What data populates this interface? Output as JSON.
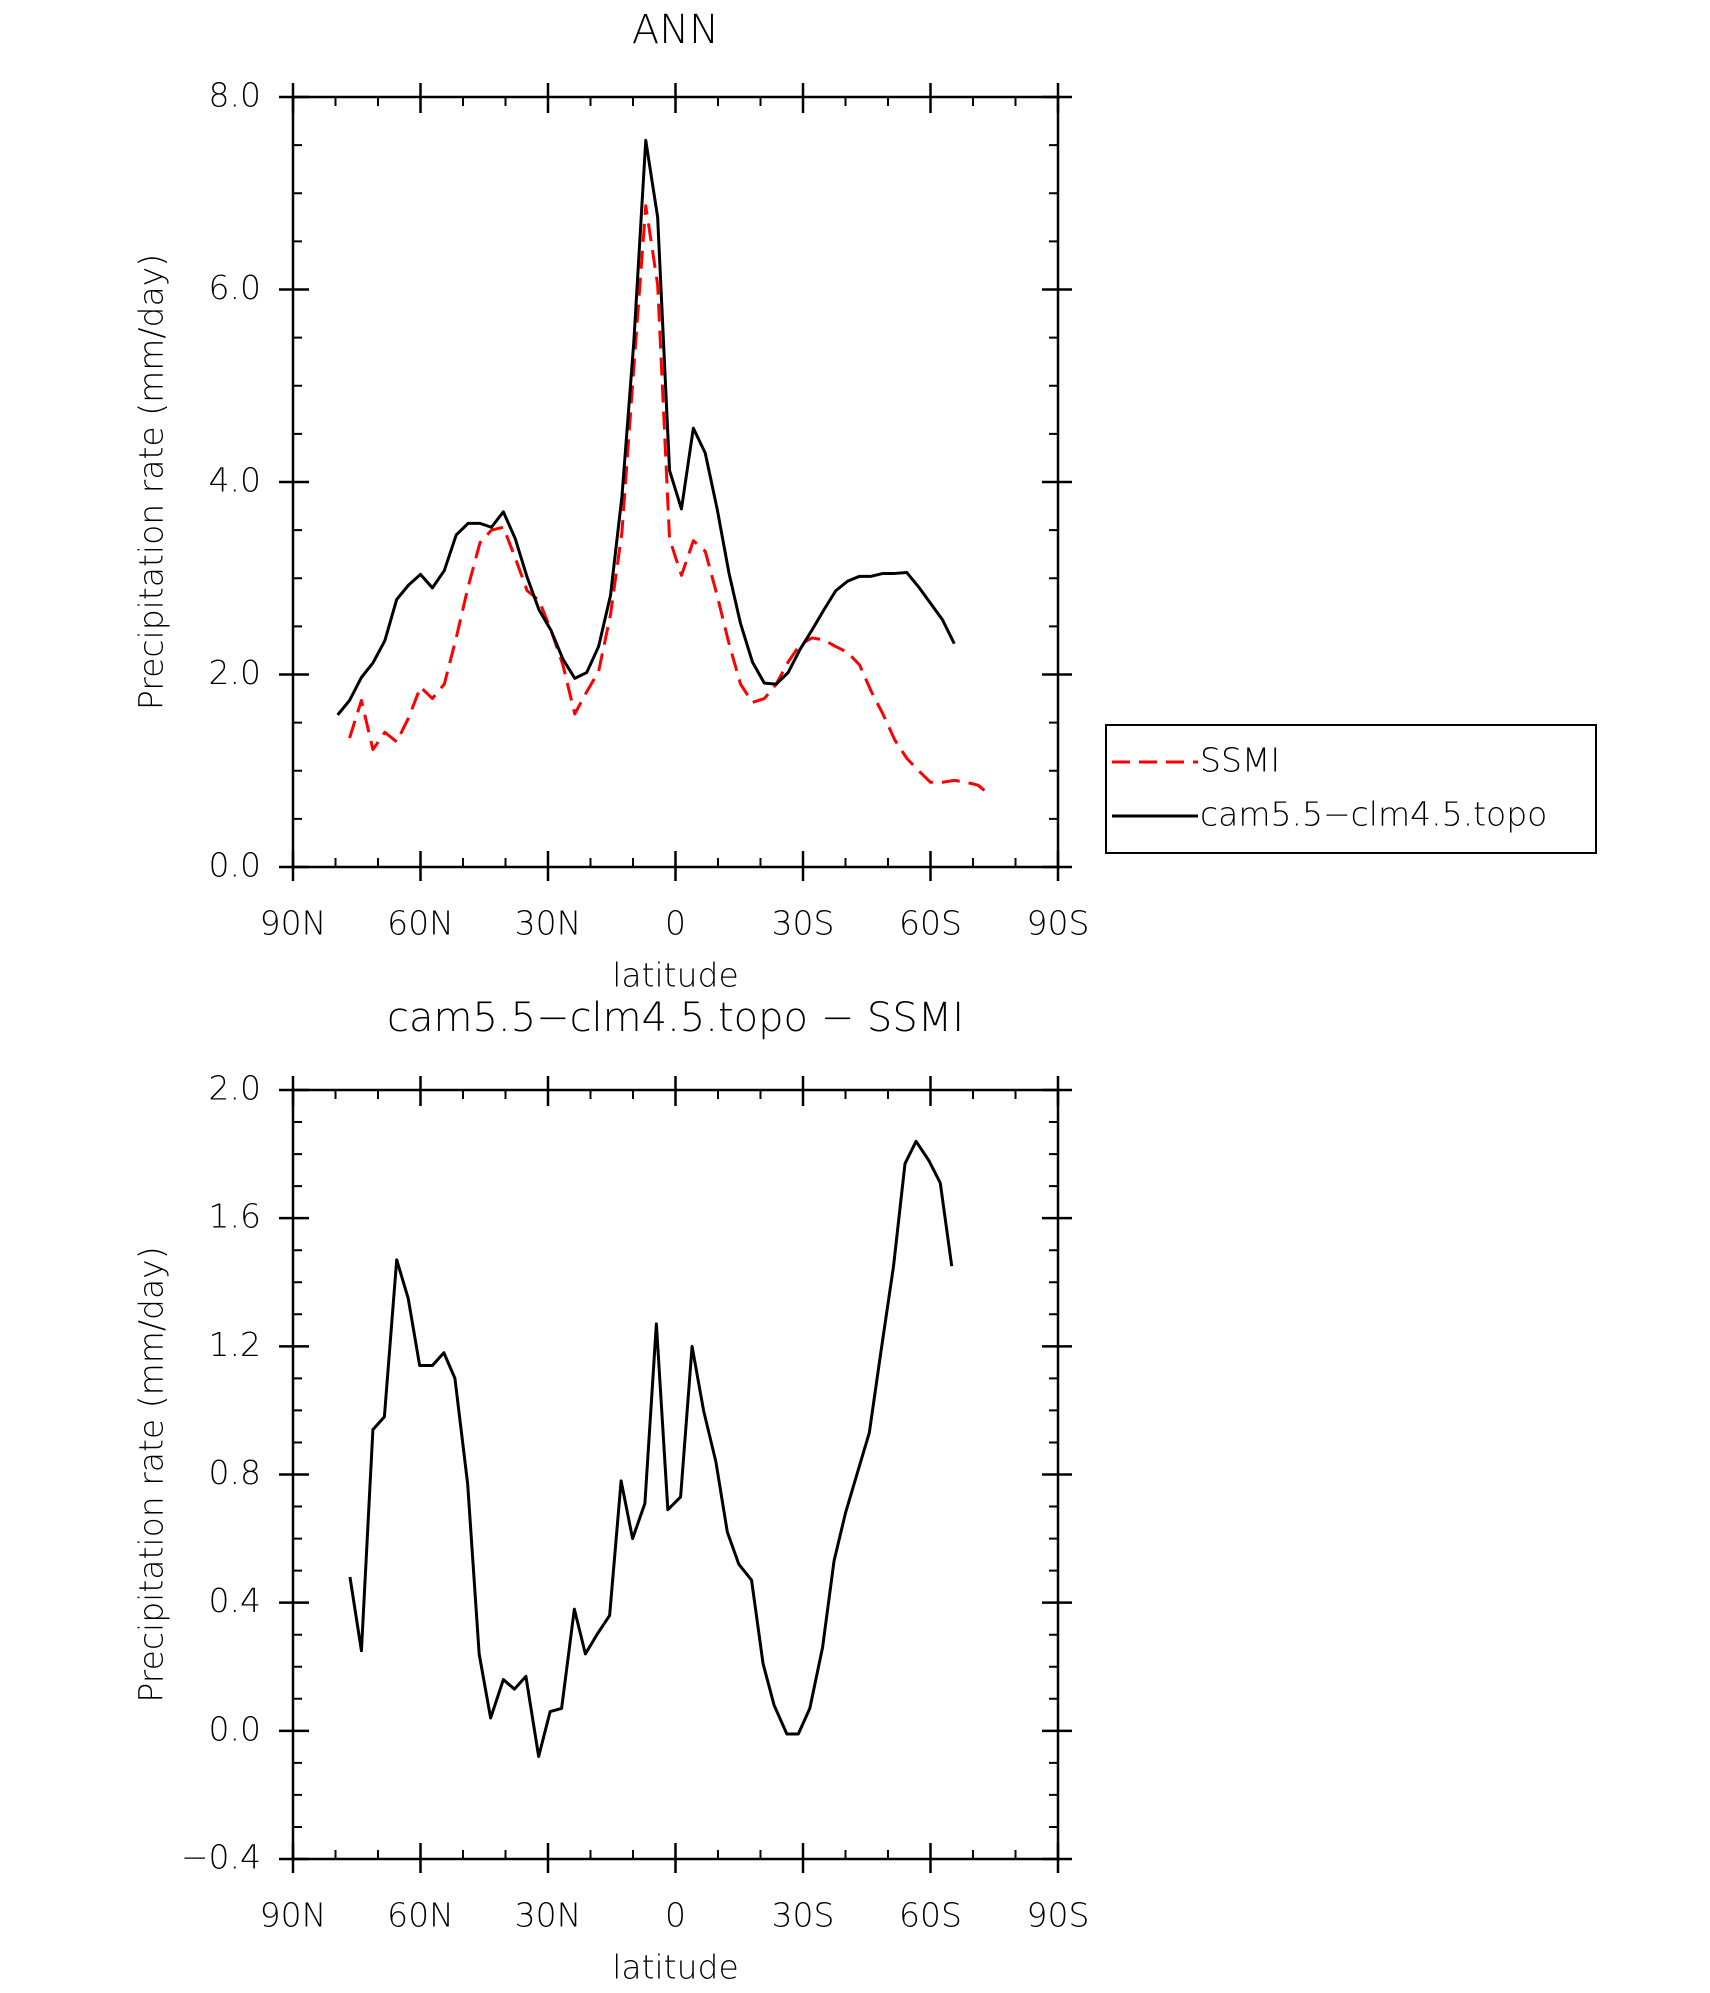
{
  "chart_data": [
    {
      "type": "line",
      "title": "ANN",
      "x_label": "latitude",
      "y_label": "Precipitation rate (mm/day)",
      "x": [
        79.5,
        76.7,
        73.9,
        71.2,
        68.4,
        65.6,
        62.8,
        60.0,
        57.2,
        54.4,
        51.6,
        48.8,
        46.0,
        43.3,
        40.5,
        37.7,
        34.9,
        32.1,
        29.3,
        26.5,
        23.7,
        20.9,
        18.1,
        15.3,
        12.6,
        9.8,
        7.0,
        4.2,
        1.4,
        -1.4,
        -4.2,
        -7.0,
        -9.8,
        -12.6,
        -15.3,
        -18.1,
        -20.9,
        -23.7,
        -26.5,
        -29.3,
        -32.1,
        -34.9,
        -37.7,
        -40.5,
        -43.3,
        -46.0,
        -48.8,
        -51.6,
        -54.4,
        -57.2,
        -60.0,
        -62.8,
        -65.6,
        -68.4,
        -71.2,
        -73.9
      ],
      "series": [
        {
          "name": "SSMI",
          "color": "#ff0000",
          "line_style": "dashed",
          "values": [
            null,
            1.34,
            1.73,
            1.22,
            1.4,
            1.3,
            1.55,
            1.87,
            1.75,
            1.9,
            2.38,
            2.91,
            3.37,
            3.5,
            3.53,
            3.21,
            2.87,
            2.77,
            2.46,
            2.1,
            1.59,
            1.82,
            2.03,
            2.62,
            3.48,
            5.19,
            6.87,
            6.05,
            3.41,
            3.03,
            3.39,
            3.28,
            2.82,
            2.32,
            1.9,
            1.71,
            1.75,
            1.9,
            2.13,
            2.31,
            2.38,
            2.36,
            2.29,
            2.23,
            2.1,
            1.83,
            1.59,
            1.32,
            1.13,
            1.0,
            0.88,
            0.88,
            0.9,
            0.88,
            0.85,
            0.75
          ]
        },
        {
          "name": "cam5.5−clm4.5.topo",
          "color": "#000000",
          "line_style": "solid",
          "values": [
            1.58,
            1.73,
            1.97,
            2.12,
            2.35,
            2.78,
            2.93,
            3.04,
            2.9,
            3.08,
            3.45,
            3.57,
            3.57,
            3.53,
            3.69,
            3.41,
            3.01,
            2.67,
            2.46,
            2.16,
            1.96,
            2.02,
            2.29,
            2.82,
            3.85,
            5.46,
            7.55,
            6.75,
            4.12,
            3.72,
            4.56,
            4.3,
            3.72,
            3.05,
            2.53,
            2.13,
            1.91,
            1.9,
            2.02,
            2.26,
            2.46,
            2.67,
            2.87,
            2.97,
            3.02,
            3.02,
            3.05,
            3.05,
            3.06,
            2.91,
            2.74,
            2.57,
            2.32,
            null,
            null,
            null
          ]
        }
      ],
      "xlim": [
        90,
        -90
      ],
      "xticks": [
        {
          "value": 90,
          "label": "90N"
        },
        {
          "value": 60,
          "label": "60N"
        },
        {
          "value": 30,
          "label": "30N"
        },
        0,
        {
          "value": -30,
          "label": "30S"
        },
        {
          "value": -60,
          "label": "60S"
        },
        {
          "value": -90,
          "label": "90S"
        }
      ],
      "minor_xticks": [
        80,
        70,
        50,
        40,
        20,
        10,
        -10,
        -20,
        -40,
        -50,
        -70,
        -80
      ],
      "ylim": [
        0,
        8
      ],
      "yticks": [
        {
          "value": 0,
          "label": "0.0"
        },
        {
          "value": 2,
          "label": "2.0"
        },
        {
          "value": 4,
          "label": "4.0"
        },
        {
          "value": 6,
          "label": "6.0"
        },
        {
          "value": 8,
          "label": "8.0"
        }
      ],
      "minor_yticks": [
        0.5,
        1,
        1.5,
        2.5,
        3,
        3.5,
        4.5,
        5,
        5.5,
        6.5,
        7,
        7.5
      ],
      "legend": "right"
    },
    {
      "type": "line",
      "title": "cam5.5−clm4.5.topo − SSMI",
      "x_label": "latitude",
      "y_label": "Precipitation rate (mm/day)",
      "x": [
        76.6,
        73.9,
        71.2,
        68.5,
        65.6,
        62.9,
        60.2,
        57.2,
        54.5,
        51.9,
        48.9,
        46.2,
        43.5,
        40.5,
        37.9,
        35.2,
        32.2,
        29.5,
        26.8,
        23.8,
        21.2,
        18.5,
        15.5,
        12.8,
        10.1,
        7.2,
        4.5,
        1.8,
        -1.2,
        -3.9,
        -6.6,
        -9.5,
        -12.2,
        -14.9,
        -17.9,
        -20.6,
        -23.2,
        -26.2,
        -28.9,
        -31.6,
        -34.6,
        -37.3,
        -40.0,
        -42.9,
        -45.6,
        -48.3,
        -51.3,
        -54.0,
        -56.6,
        -59.6,
        -62.3,
        -65.0
      ],
      "series": [
        {
          "color": "#000000",
          "line_style": "solid",
          "values": [
            0.48,
            0.25,
            0.94,
            0.98,
            1.47,
            1.35,
            1.14,
            1.14,
            1.18,
            1.1,
            0.77,
            0.24,
            0.04,
            0.16,
            0.13,
            0.17,
            -0.08,
            0.06,
            0.07,
            0.38,
            0.24,
            0.3,
            0.36,
            0.78,
            0.6,
            0.71,
            1.27,
            0.69,
            0.73,
            1.2,
            1.0,
            0.84,
            0.62,
            0.52,
            0.47,
            0.21,
            0.08,
            -0.01,
            -0.01,
            0.07,
            0.26,
            0.53,
            0.68,
            0.81,
            0.93,
            1.18,
            1.45,
            1.77,
            1.84,
            1.78,
            1.71,
            1.45
          ]
        }
      ],
      "xlim": [
        90,
        -90
      ],
      "xticks": [
        {
          "value": 90,
          "label": "90N"
        },
        {
          "value": 60,
          "label": "60N"
        },
        {
          "value": 30,
          "label": "30N"
        },
        0,
        {
          "value": -30,
          "label": "30S"
        },
        {
          "value": -60,
          "label": "60S"
        },
        {
          "value": -90,
          "label": "90S"
        }
      ],
      "minor_xticks": [
        80,
        70,
        50,
        40,
        20,
        10,
        -10,
        -20,
        -40,
        -50,
        -70,
        -80
      ],
      "ylim": [
        -0.4,
        2.0
      ],
      "yticks": [
        {
          "value": -0.4,
          "label": "−0.4"
        },
        {
          "value": 0,
          "label": "0.0"
        },
        {
          "value": 0.4,
          "label": "0.4"
        },
        {
          "value": 0.8,
          "label": "0.8"
        },
        {
          "value": 1.2,
          "label": "1.2"
        },
        {
          "value": 1.6,
          "label": "1.6"
        },
        {
          "value": 2.0,
          "label": "2.0"
        }
      ],
      "minor_yticks": [
        -0.3,
        -0.2,
        -0.1,
        0.1,
        0.2,
        0.3,
        0.5,
        0.6,
        0.7,
        0.9,
        1.0,
        1.1,
        1.3,
        1.4,
        1.5,
        1.7,
        1.8,
        1.9
      ]
    }
  ]
}
